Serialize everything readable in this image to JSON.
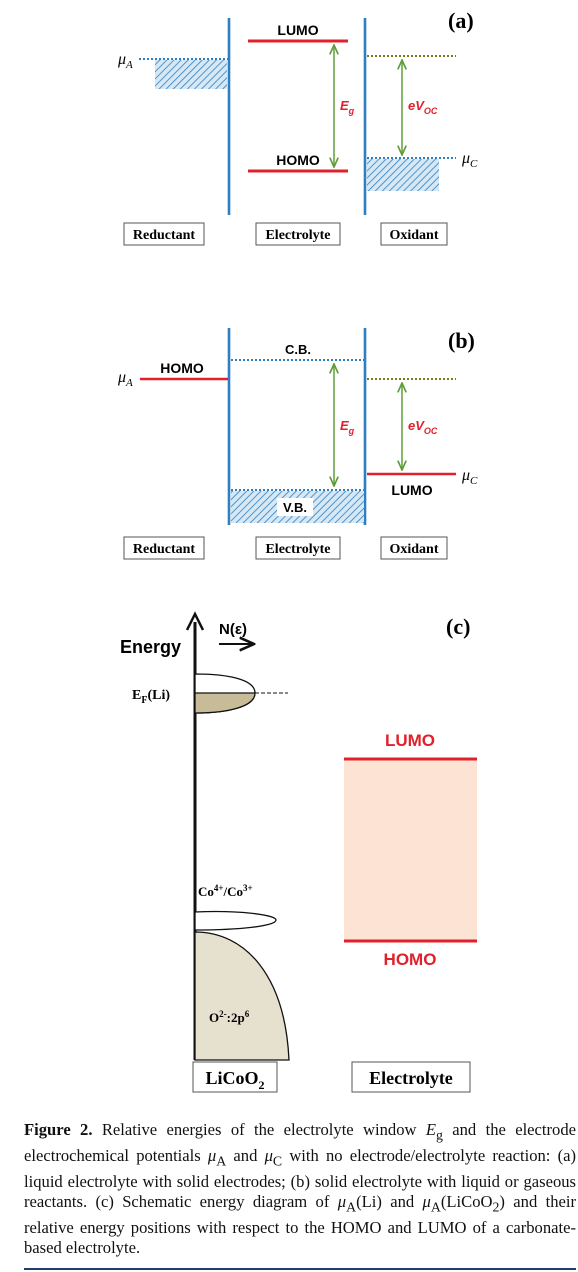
{
  "panel_a": {
    "tag": "(a)",
    "lumo": "LUMO",
    "homo": "HOMO",
    "mu_a": "μ",
    "mu_a_sub": "A",
    "mu_c": "μ",
    "mu_c_sub": "C",
    "eg": "E",
    "eg_sub": "g",
    "evoc": "eV",
    "evoc_sub": "OC",
    "box_reductant": "Reductant",
    "box_electrolyte": "Electrolyte",
    "box_oxidant": "Oxidant"
  },
  "panel_b": {
    "tag": "(b)",
    "homo": "HOMO",
    "cb": "C.B.",
    "vb": "V.B.",
    "lumo": "LUMO",
    "mu_a": "μ",
    "mu_a_sub": "A",
    "mu_c": "μ",
    "mu_c_sub": "C",
    "eg": "E",
    "eg_sub": "g",
    "evoc": "eV",
    "evoc_sub": "OC",
    "box_reductant": "Reductant",
    "box_electrolyte": "Electrolyte",
    "box_oxidant": "Oxidant"
  },
  "panel_c": {
    "tag": "(c)",
    "energy": "Energy",
    "dos": "N(ε)",
    "ef": "E",
    "ef_sub": "F",
    "ef_tail": "(Li)",
    "co": "Co",
    "co_sup1": "4+",
    "co_mid": "/Co",
    "co_sup2": "3+",
    "o2": "O",
    "o2_sup": "2-",
    "o2_tail": ":2p",
    "o2_sup2": "6",
    "lumo": "LUMO",
    "homo": "HOMO",
    "box_licoo2": "LiCoO",
    "box_licoo2_sub": "2",
    "box_electrolyte": "Electrolyte"
  },
  "caption": {
    "label": "Figure 2.",
    "t1": " Relative energies of the electrolyte window ",
    "eg": "E",
    "eg_sub": "g",
    "t2": " and the electrode electrochemical potentials ",
    "mu_a": "μ",
    "mu_a_sub": "A",
    "t3": " and ",
    "mu_c": "μ",
    "mu_c_sub": "C",
    "t4": " with no electrode/electrolyte reaction: (a) liquid electrolyte with solid electrodes; (b) solid electrolyte with liquid or gaseous reactants. (c) Schematic energy diagram of ",
    "mu_a2": "μ",
    "mu_a2_sub": "A",
    "t5": "(Li) and ",
    "mu_a3": "μ",
    "mu_a3_sub": "A",
    "t6": "(LiCoO",
    "t6_sub": "2",
    "t7": ") and their relative energy positions with respect to the HOMO and LUMO of a carbonate-based electrolyte."
  },
  "colors": {
    "electrode_line": "#2e7fc1",
    "level_red": "#e0202a",
    "arrow_green": "#5f9e3a",
    "hatch_blue": "#2e7fc1",
    "window_fill": "#fde3d4",
    "dos_fill": "#c8bc98",
    "o2p_fill": "#e6e0cf"
  }
}
